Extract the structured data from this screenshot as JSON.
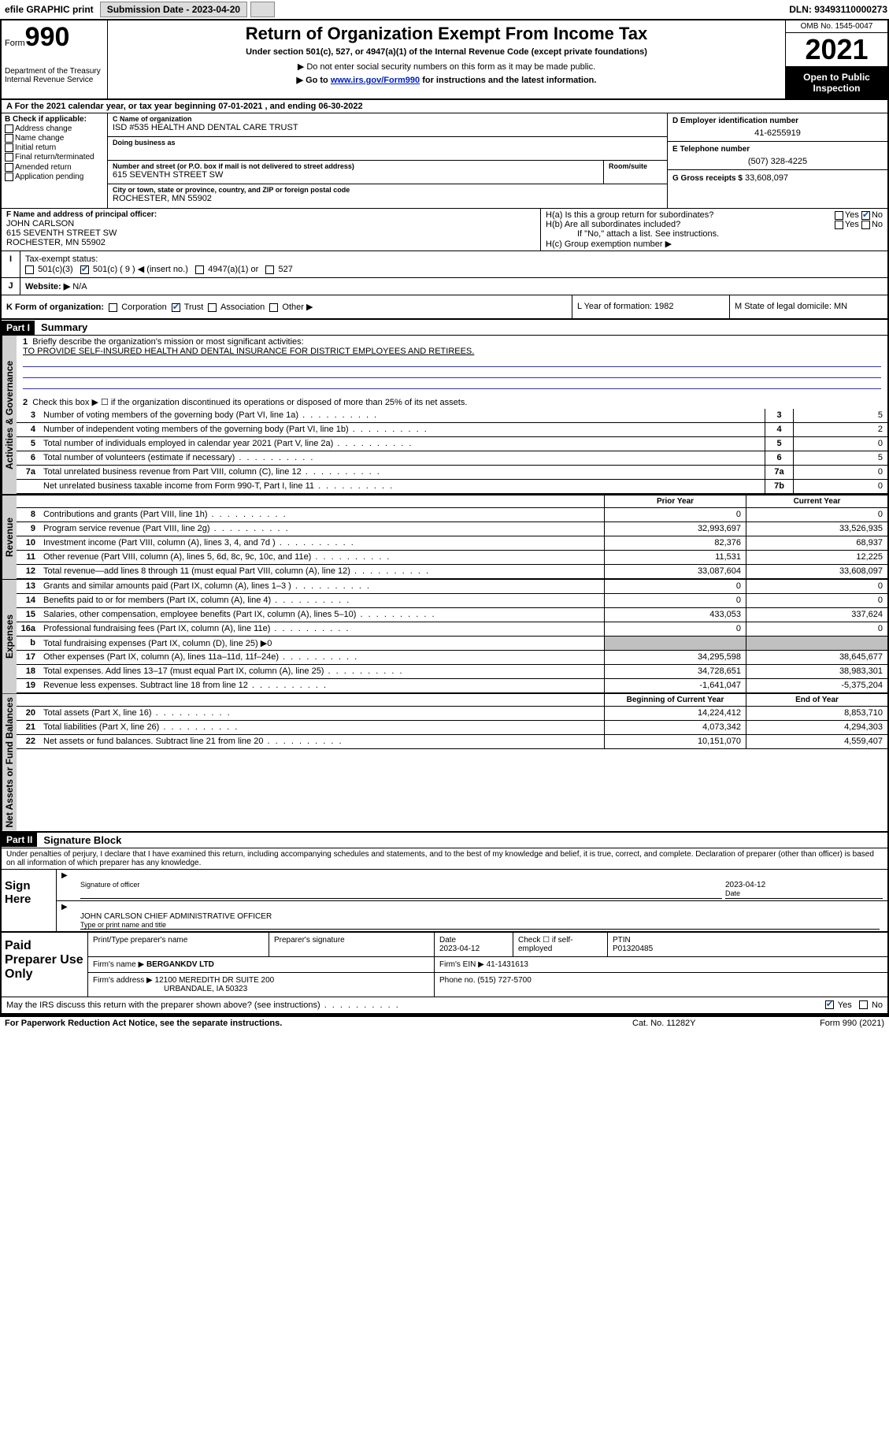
{
  "topbar": {
    "efile": "efile GRAPHIC print",
    "submission_label": "Submission Date - 2023-04-20",
    "dln": "DLN: 93493110000273"
  },
  "header": {
    "form_prefix": "Form",
    "form_number": "990",
    "dept": "Department of the Treasury",
    "irs": "Internal Revenue Service",
    "title": "Return of Organization Exempt From Income Tax",
    "subtitle": "Under section 501(c), 527, or 4947(a)(1) of the Internal Revenue Code (except private foundations)",
    "note1": "▶ Do not enter social security numbers on this form as it may be made public.",
    "note2_pre": "▶ Go to ",
    "note2_link": "www.irs.gov/Form990",
    "note2_post": " for instructions and the latest information.",
    "omb": "OMB No. 1545-0047",
    "year": "2021",
    "inspection": "Open to Public Inspection"
  },
  "row_a": "A  For the 2021 calendar year, or tax year beginning 07-01-2021  , and ending 06-30-2022",
  "col_b": {
    "heading": "B Check if applicable:",
    "opts": [
      "Address change",
      "Name change",
      "Initial return",
      "Final return/terminated",
      "Amended return",
      "Application pending"
    ]
  },
  "col_c": {
    "name_label": "C Name of organization",
    "name": "ISD #535 HEALTH AND DENTAL CARE TRUST",
    "dba_label": "Doing business as",
    "dba": "",
    "addr_label": "Number and street (or P.O. box if mail is not delivered to street address)",
    "room_label": "Room/suite",
    "addr": "615 SEVENTH STREET SW",
    "city_label": "City or town, state or province, country, and ZIP or foreign postal code",
    "city": "ROCHESTER, MN  55902"
  },
  "col_d": {
    "ein_label": "D Employer identification number",
    "ein": "41-6255919",
    "phone_label": "E Telephone number",
    "phone": "(507) 328-4225",
    "gross_label": "G Gross receipts $",
    "gross": "33,608,097"
  },
  "principal": {
    "label": "F Name and address of principal officer:",
    "name": "JOHN CARLSON",
    "addr1": "615 SEVENTH STREET SW",
    "addr2": "ROCHESTER, MN  55902"
  },
  "col_h": {
    "ha": "H(a)  Is this a group return for subordinates?",
    "hb": "H(b)  Are all subordinates included?",
    "hb_note": "If \"No,\" attach a list. See instructions.",
    "hc": "H(c)  Group exemption number ▶",
    "yes": "Yes",
    "no": "No"
  },
  "status": {
    "i_label": "I",
    "i_text": "Tax-exempt status:",
    "opt1": "501(c)(3)",
    "opt2": "501(c) ( 9 ) ◀ (insert no.)",
    "opt3": "4947(a)(1) or",
    "opt4": "527"
  },
  "website": {
    "j_label": "J",
    "text": "Website: ▶",
    "val": "N/A"
  },
  "kform": {
    "text": "K Form of organization:",
    "opts": [
      "Corporation",
      "Trust",
      "Association",
      "Other ▶"
    ],
    "l": "L Year of formation: 1982",
    "m": "M State of legal domicile: MN"
  },
  "part1": {
    "label": "Part I",
    "title": "Summary",
    "q1": "Briefly describe the organization's mission or most significant activities:",
    "mission": "TO PROVIDE SELF-INSURED HEALTH AND DENTAL INSURANCE FOR DISTRICT EMPLOYEES AND RETIREES.",
    "q2": "Check this box ▶ ☐  if the organization discontinued its operations or disposed of more than 25% of its net assets.",
    "side_ag": "Activities & Governance",
    "side_rev": "Revenue",
    "side_exp": "Expenses",
    "side_net": "Net Assets or Fund Balances",
    "hdr_prior": "Prior Year",
    "hdr_curr": "Current Year",
    "hdr_begin": "Beginning of Current Year",
    "hdr_end": "End of Year"
  },
  "lines_ag": [
    {
      "n": "3",
      "t": "Number of voting members of the governing body (Part VI, line 1a)",
      "b": "3",
      "v": "5"
    },
    {
      "n": "4",
      "t": "Number of independent voting members of the governing body (Part VI, line 1b)",
      "b": "4",
      "v": "2"
    },
    {
      "n": "5",
      "t": "Total number of individuals employed in calendar year 2021 (Part V, line 2a)",
      "b": "5",
      "v": "0"
    },
    {
      "n": "6",
      "t": "Total number of volunteers (estimate if necessary)",
      "b": "6",
      "v": "5"
    },
    {
      "n": "7a",
      "t": "Total unrelated business revenue from Part VIII, column (C), line 12",
      "b": "7a",
      "v": "0"
    },
    {
      "n": "",
      "t": "Net unrelated business taxable income from Form 990-T, Part I, line 11",
      "b": "7b",
      "v": "0"
    }
  ],
  "lines_rev": [
    {
      "n": "8",
      "t": "Contributions and grants (Part VIII, line 1h)",
      "p": "0",
      "c": "0"
    },
    {
      "n": "9",
      "t": "Program service revenue (Part VIII, line 2g)",
      "p": "32,993,697",
      "c": "33,526,935"
    },
    {
      "n": "10",
      "t": "Investment income (Part VIII, column (A), lines 3, 4, and 7d )",
      "p": "82,376",
      "c": "68,937"
    },
    {
      "n": "11",
      "t": "Other revenue (Part VIII, column (A), lines 5, 6d, 8c, 9c, 10c, and 11e)",
      "p": "11,531",
      "c": "12,225"
    },
    {
      "n": "12",
      "t": "Total revenue—add lines 8 through 11 (must equal Part VIII, column (A), line 12)",
      "p": "33,087,604",
      "c": "33,608,097"
    }
  ],
  "lines_exp": [
    {
      "n": "13",
      "t": "Grants and similar amounts paid (Part IX, column (A), lines 1–3 )",
      "p": "0",
      "c": "0"
    },
    {
      "n": "14",
      "t": "Benefits paid to or for members (Part IX, column (A), line 4)",
      "p": "0",
      "c": "0"
    },
    {
      "n": "15",
      "t": "Salaries, other compensation, employee benefits (Part IX, column (A), lines 5–10)",
      "p": "433,053",
      "c": "337,624"
    },
    {
      "n": "16a",
      "t": "Professional fundraising fees (Part IX, column (A), line 11e)",
      "p": "0",
      "c": "0"
    },
    {
      "n": "b",
      "t": "Total fundraising expenses (Part IX, column (D), line 25) ▶0",
      "p": "",
      "c": "",
      "shade": true
    },
    {
      "n": "17",
      "t": "Other expenses (Part IX, column (A), lines 11a–11d, 11f–24e)",
      "p": "34,295,598",
      "c": "38,645,677"
    },
    {
      "n": "18",
      "t": "Total expenses. Add lines 13–17 (must equal Part IX, column (A), line 25)",
      "p": "34,728,651",
      "c": "38,983,301"
    },
    {
      "n": "19",
      "t": "Revenue less expenses. Subtract line 18 from line 12",
      "p": "-1,641,047",
      "c": "-5,375,204"
    }
  ],
  "lines_net": [
    {
      "n": "20",
      "t": "Total assets (Part X, line 16)",
      "p": "14,224,412",
      "c": "8,853,710"
    },
    {
      "n": "21",
      "t": "Total liabilities (Part X, line 26)",
      "p": "4,073,342",
      "c": "4,294,303"
    },
    {
      "n": "22",
      "t": "Net assets or fund balances. Subtract line 21 from line 20",
      "p": "10,151,070",
      "c": "4,559,407"
    }
  ],
  "part2": {
    "label": "Part II",
    "title": "Signature Block",
    "decl": "Under penalties of perjury, I declare that I have examined this return, including accompanying schedules and statements, and to the best of my knowledge and belief, it is true, correct, and complete. Declaration of preparer (other than officer) is based on all information of which preparer has any knowledge.",
    "sign_here": "Sign Here",
    "sig_officer": "Signature of officer",
    "sig_date": "2023-04-12",
    "date_lbl": "Date",
    "officer_name": "JOHN CARLSON CHIEF ADMINISTRATIVE OFFICER",
    "type_name": "Type or print name and title"
  },
  "paid": {
    "label": "Paid Preparer Use Only",
    "h1": "Print/Type preparer's name",
    "h2": "Preparer's signature",
    "h3": "Date",
    "date": "2023-04-12",
    "h4": "Check ☐ if self-employed",
    "h5": "PTIN",
    "ptin": "P01320485",
    "firm_name_lbl": "Firm's name   ▶",
    "firm_name": "BERGANKDV LTD",
    "firm_ein_lbl": "Firm's EIN ▶",
    "firm_ein": "41-1431613",
    "firm_addr_lbl": "Firm's address ▶",
    "firm_addr1": "12100 MEREDITH DR SUITE 200",
    "firm_addr2": "URBANDALE, IA  50323",
    "phone_lbl": "Phone no.",
    "phone": "(515) 727-5700",
    "discuss": "May the IRS discuss this return with the preparer shown above? (see instructions)",
    "yes": "Yes",
    "no": "No"
  },
  "footer": {
    "left": "For Paperwork Reduction Act Notice, see the separate instructions.",
    "mid": "Cat. No. 11282Y",
    "right": "Form 990 (2021)"
  }
}
